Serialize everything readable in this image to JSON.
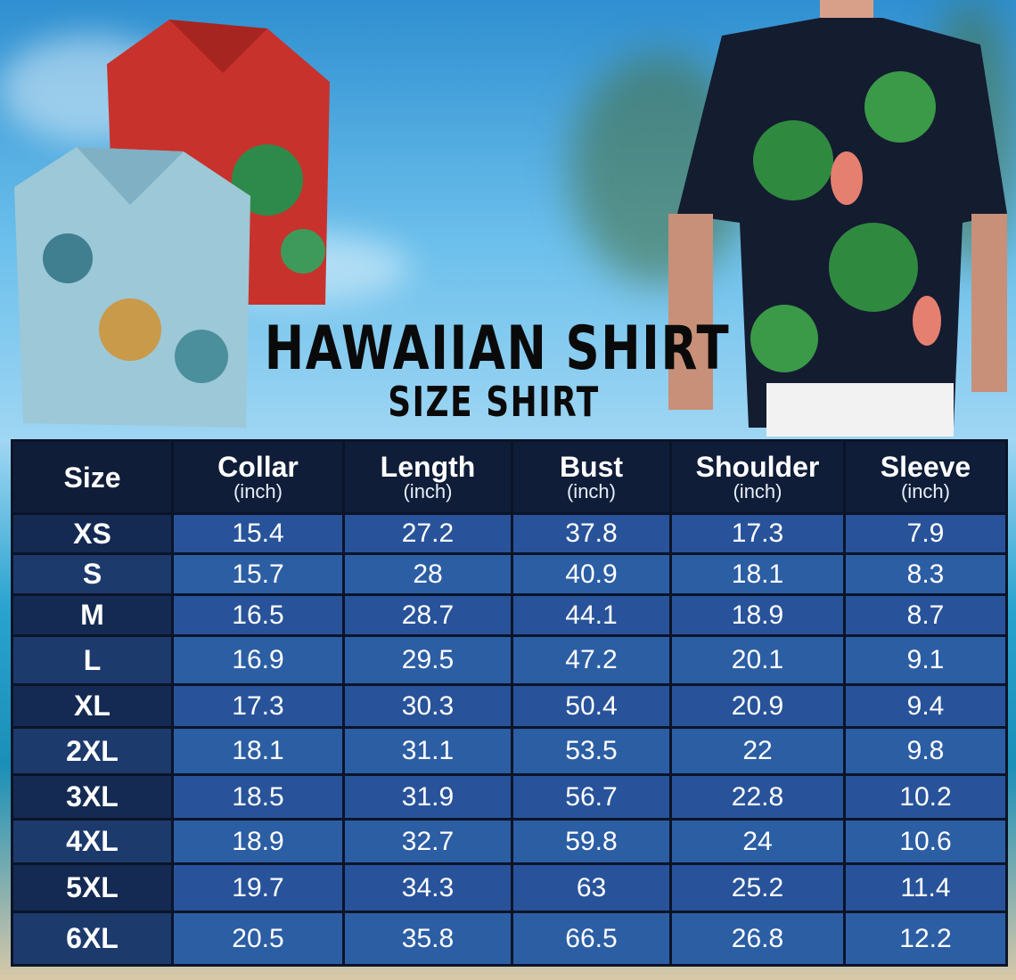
{
  "title": "HAWAIIAN SHIRT",
  "subtitle": "SIZE SHIRT",
  "colors": {
    "header_bg": "#0f1d38",
    "size_col_bg": "#1d3a6c",
    "cell_bg": "#2c5ea4",
    "title": "#0a0a0a"
  },
  "table": {
    "headers": [
      {
        "label": "Size",
        "unit": ""
      },
      {
        "label": "Collar",
        "unit": "(inch)"
      },
      {
        "label": "Length",
        "unit": "(inch)"
      },
      {
        "label": "Bust",
        "unit": "(inch)"
      },
      {
        "label": "Shoulder",
        "unit": "(inch)"
      },
      {
        "label": "Sleeve",
        "unit": "(inch)"
      }
    ],
    "rows": [
      [
        "XS",
        "15.4",
        "27.2",
        "37.8",
        "17.3",
        "7.9"
      ],
      [
        "S",
        "15.7",
        "28",
        "40.9",
        "18.1",
        "8.3"
      ],
      [
        "M",
        "16.5",
        "28.7",
        "44.1",
        "18.9",
        "8.7"
      ],
      [
        "L",
        "16.9",
        "29.5",
        "47.2",
        "20.1",
        "9.1"
      ],
      [
        "XL",
        "17.3",
        "30.3",
        "50.4",
        "20.9",
        "9.4"
      ],
      [
        "2XL",
        "18.1",
        "31.1",
        "53.5",
        "22",
        "9.8"
      ],
      [
        "3XL",
        "18.5",
        "31.9",
        "56.7",
        "22.8",
        "10.2"
      ],
      [
        "4XL",
        "18.9",
        "32.7",
        "59.8",
        "24",
        "10.6"
      ],
      [
        "5XL",
        "19.7",
        "34.3",
        "63",
        "25.2",
        "11.4"
      ],
      [
        "6XL",
        "20.5",
        "35.8",
        "66.5",
        "26.8",
        "12.2"
      ]
    ]
  }
}
